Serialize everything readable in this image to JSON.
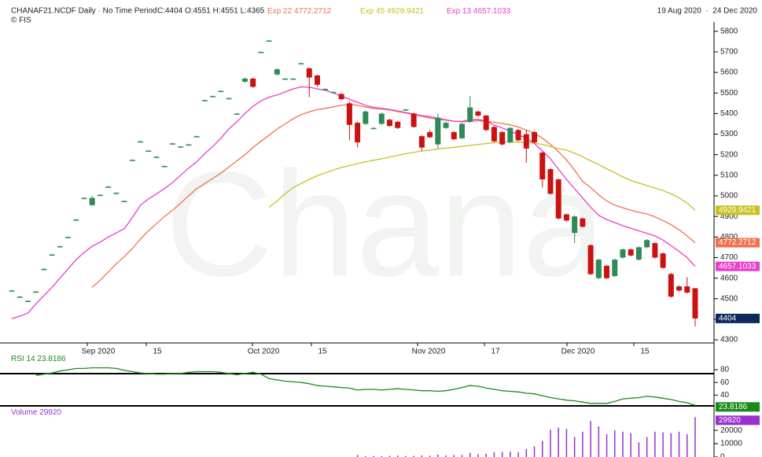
{
  "header": {
    "symbol": "CHANAF21.NCDF Daily · No Time Period",
    "ohlc": "C:4404 O:4551 H:4551 L:4365",
    "copyright": "© FIS",
    "date_range": "19 Aug 2020  ·  24 Dec 2020"
  },
  "chart_data": [
    {
      "type": "candlestick",
      "watermark": "Chana",
      "up_color": "#2e8b57",
      "down_color": "#cc1111",
      "x_labels": [
        "Sep 2020",
        "15",
        "Oct 2020",
        "15",
        "Nov 2020",
        "17",
        "Dec 2020",
        "15"
      ],
      "ylim": [
        4285,
        5845
      ],
      "yticks": [
        4300,
        4400,
        4500,
        4600,
        4700,
        4800,
        4900,
        5000,
        5100,
        5200,
        5300,
        5400,
        5500,
        5600,
        5700,
        5800
      ],
      "candles": [
        [
          4538,
          4543,
          4535,
          4540
        ],
        [
          4508,
          4513,
          4505,
          4510
        ],
        [
          4488,
          4493,
          4485,
          4490
        ],
        [
          4533,
          4538,
          4530,
          4535
        ],
        [
          4643,
          4648,
          4640,
          4645
        ],
        [
          4713,
          4718,
          4710,
          4715
        ],
        [
          4753,
          4758,
          4750,
          4755
        ],
        [
          4798,
          4803,
          4795,
          4800
        ],
        [
          4883,
          4888,
          4880,
          4885
        ],
        [
          4988,
          4993,
          4985,
          4990
        ],
        [
          4955,
          5000,
          4950,
          4990
        ],
        [
          5003,
          5008,
          5000,
          5005
        ],
        [
          5043,
          5048,
          5040,
          5045
        ],
        [
          5013,
          5018,
          5010,
          5015
        ],
        [
          4973,
          4978,
          4970,
          4975
        ],
        [
          5173,
          5178,
          5170,
          5175
        ],
        [
          5263,
          5268,
          5260,
          5265
        ],
        [
          5218,
          5223,
          5215,
          5220
        ],
        [
          5188,
          5193,
          5185,
          5190
        ],
        [
          5143,
          5148,
          5140,
          5145
        ],
        [
          5253,
          5258,
          5250,
          5255
        ],
        [
          5238,
          5243,
          5235,
          5240
        ],
        [
          5248,
          5253,
          5245,
          5250
        ],
        [
          5288,
          5293,
          5285,
          5290
        ],
        [
          5463,
          5468,
          5460,
          5465
        ],
        [
          5483,
          5488,
          5480,
          5485
        ],
        [
          5508,
          5513,
          5505,
          5510
        ],
        [
          5473,
          5478,
          5470,
          5475
        ],
        [
          5398,
          5403,
          5395,
          5400
        ],
        [
          5555,
          5575,
          5550,
          5570
        ],
        [
          5570,
          5575,
          5525,
          5530
        ],
        [
          5698,
          5703,
          5695,
          5700
        ],
        [
          5753,
          5758,
          5750,
          5755
        ],
        [
          5590,
          5620,
          5585,
          5615
        ],
        [
          5568,
          5573,
          5565,
          5570
        ],
        [
          5568,
          5573,
          5565,
          5570
        ],
        [
          5643,
          5648,
          5640,
          5645
        ],
        [
          5620,
          5625,
          5480,
          5575
        ],
        [
          5585,
          5590,
          5530,
          5540
        ],
        [
          5518,
          5523,
          5515,
          5520
        ],
        [
          5503,
          5508,
          5500,
          5505
        ],
        [
          5495,
          5500,
          5465,
          5470
        ],
        [
          5450,
          5460,
          5270,
          5345
        ],
        [
          5355,
          5360,
          5235,
          5260
        ],
        [
          5350,
          5415,
          5345,
          5410
        ],
        [
          5328,
          5333,
          5325,
          5330
        ],
        [
          5350,
          5405,
          5345,
          5400
        ],
        [
          5370,
          5375,
          5335,
          5340
        ],
        [
          5360,
          5365,
          5325,
          5330
        ],
        [
          5418,
          5423,
          5415,
          5420
        ],
        [
          5400,
          5405,
          5330,
          5335
        ],
        [
          5290,
          5295,
          5220,
          5235
        ],
        [
          5310,
          5320,
          5280,
          5285
        ],
        [
          5250,
          5400,
          5230,
          5380
        ],
        [
          5330,
          5360,
          5325,
          5355
        ],
        [
          5310,
          5315,
          5270,
          5275
        ],
        [
          5280,
          5355,
          5275,
          5350
        ],
        [
          5360,
          5485,
          5355,
          5430
        ],
        [
          5410,
          5415,
          5385,
          5390
        ],
        [
          5390,
          5395,
          5315,
          5320
        ],
        [
          5335,
          5340,
          5260,
          5265
        ],
        [
          5310,
          5315,
          5245,
          5250
        ],
        [
          5260,
          5335,
          5255,
          5330
        ],
        [
          5320,
          5325,
          5265,
          5270
        ],
        [
          5300,
          5320,
          5160,
          5230
        ],
        [
          5310,
          5315,
          5255,
          5260
        ],
        [
          5210,
          5215,
          5040,
          5080
        ],
        [
          5130,
          5135,
          5005,
          5010
        ],
        [
          5080,
          5085,
          4885,
          4890
        ],
        [
          4910,
          4915,
          4875,
          4880
        ],
        [
          4820,
          4905,
          4770,
          4900
        ],
        [
          4890,
          4895,
          4845,
          4850
        ],
        [
          4760,
          4765,
          4615,
          4620
        ],
        [
          4600,
          4695,
          4595,
          4690
        ],
        [
          4660,
          4665,
          4595,
          4600
        ],
        [
          4610,
          4695,
          4605,
          4690
        ],
        [
          4700,
          4745,
          4695,
          4740
        ],
        [
          4740,
          4745,
          4705,
          4710
        ],
        [
          4690,
          4755,
          4685,
          4750
        ],
        [
          4750,
          4790,
          4745,
          4785
        ],
        [
          4770,
          4775,
          4695,
          4700
        ],
        [
          4720,
          4725,
          4645,
          4650
        ],
        [
          4620,
          4625,
          4505,
          4510
        ],
        [
          4560,
          4565,
          4535,
          4540
        ],
        [
          4560,
          4605,
          4525,
          4530
        ],
        [
          4551,
          4551,
          4365,
          4404
        ]
      ],
      "series": [
        {
          "name": "Exp 22",
          "color": "#f07050",
          "values": [
            null,
            null,
            null,
            null,
            null,
            null,
            null,
            null,
            null,
            null,
            4555,
            4590,
            4630,
            4670,
            4705,
            4745,
            4790,
            4830,
            4865,
            4900,
            4930,
            4965,
            5000,
            5035,
            5060,
            5085,
            5110,
            5140,
            5170,
            5200,
            5235,
            5265,
            5295,
            5325,
            5350,
            5375,
            5395,
            5408,
            5420,
            5425,
            5433,
            5440,
            5444,
            5440,
            5432,
            5425,
            5422,
            5418,
            5410,
            5403,
            5395,
            5387,
            5378,
            5372,
            5368,
            5363,
            5360,
            5362,
            5365,
            5362,
            5358,
            5352,
            5345,
            5335,
            5320,
            5305,
            5280,
            5250,
            5215,
            5175,
            5125,
            5070,
            5040,
            5005,
            4975,
            4955,
            4942,
            4930,
            4920,
            4912,
            4898,
            4880,
            4860,
            4835,
            4805,
            4772.2712
          ]
        },
        {
          "name": "Exp 45",
          "color": "#c8c020",
          "values": [
            null,
            null,
            null,
            null,
            null,
            null,
            null,
            null,
            null,
            null,
            null,
            null,
            null,
            null,
            null,
            null,
            null,
            null,
            null,
            null,
            null,
            null,
            null,
            null,
            null,
            null,
            null,
            null,
            null,
            null,
            null,
            null,
            4945,
            4975,
            5010,
            5040,
            5060,
            5080,
            5098,
            5112,
            5125,
            5138,
            5147,
            5157,
            5165,
            5173,
            5180,
            5188,
            5197,
            5205,
            5212,
            5218,
            5222,
            5228,
            5232,
            5236,
            5240,
            5245,
            5250,
            5254,
            5258,
            5262,
            5262,
            5261,
            5259,
            5256,
            5250,
            5240,
            5230,
            5222,
            5208,
            5190,
            5170,
            5152,
            5132,
            5112,
            5092,
            5075,
            5062,
            5050,
            5038,
            5026,
            5010,
            4990,
            4965,
            4929.9421
          ]
        },
        {
          "name": "Exp 13",
          "color": "#e83ec8",
          "values": [
            4403,
            4415,
            4430,
            4475,
            4515,
            4555,
            4600,
            4645,
            4690,
            4725,
            4755,
            4775,
            4800,
            4820,
            4840,
            4895,
            4955,
            4985,
            5010,
            5035,
            5065,
            5100,
            5135,
            5165,
            5205,
            5240,
            5280,
            5325,
            5360,
            5400,
            5435,
            5462,
            5480,
            5490,
            5505,
            5520,
            5530,
            5528,
            5520,
            5513,
            5500,
            5485,
            5470,
            5455,
            5440,
            5430,
            5425,
            5420,
            5413,
            5405,
            5398,
            5390,
            5385,
            5378,
            5370,
            5363,
            5362,
            5370,
            5372,
            5362,
            5345,
            5330,
            5315,
            5298,
            5280,
            5255,
            5218,
            5180,
            5130,
            5080,
            5035,
            4990,
            4945,
            4905,
            4885,
            4870,
            4855,
            4843,
            4830,
            4818,
            4805,
            4785,
            4758,
            4730,
            4700,
            4657.1033
          ]
        }
      ]
    },
    {
      "type": "line",
      "ylim": [
        23,
        90
      ],
      "yticks": [
        40,
        60,
        80
      ],
      "series": [
        {
          "name": "RSI 14",
          "color": "#1a8a1a",
          "values": [
            null,
            null,
            null,
            71,
            73,
            75,
            78,
            80,
            82,
            82,
            83,
            83,
            83,
            82,
            79,
            77,
            75,
            74,
            73,
            73,
            74,
            74,
            76,
            77,
            77,
            77,
            76,
            74,
            72,
            74,
            76,
            73,
            66,
            64,
            62,
            61,
            60,
            58,
            55,
            54,
            53,
            52,
            51,
            48,
            49,
            49,
            48,
            49,
            50,
            49,
            48,
            47,
            47,
            46,
            47,
            49,
            52,
            55,
            54,
            51,
            49,
            47,
            46,
            45,
            43,
            42,
            39,
            36,
            34,
            32,
            31,
            29,
            27,
            27,
            27,
            30,
            34,
            35,
            36,
            38,
            37,
            35,
            33,
            30,
            28,
            23.8186
          ]
        }
      ]
    },
    {
      "type": "bar",
      "title": "Volume",
      "color": "#9932cc",
      "ylim": [
        0,
        36000
      ],
      "yticks": [
        0,
        10000,
        20000
      ],
      "values": [
        null,
        null,
        null,
        null,
        null,
        null,
        null,
        null,
        null,
        null,
        null,
        null,
        null,
        null,
        null,
        null,
        null,
        null,
        null,
        null,
        null,
        null,
        null,
        null,
        null,
        null,
        null,
        null,
        null,
        null,
        null,
        null,
        null,
        null,
        null,
        null,
        null,
        null,
        null,
        null,
        null,
        null,
        null,
        1500,
        600,
        800,
        700,
        900,
        1000,
        800,
        900,
        1200,
        1000,
        1800,
        1200,
        1500,
        1600,
        3000,
        2000,
        2500,
        3500,
        3800,
        4000,
        3500,
        6000,
        8000,
        12000,
        20500,
        22000,
        21000,
        15000,
        19000,
        27000,
        23000,
        17000,
        20000,
        19000,
        18000,
        11000,
        15000,
        19000,
        18500,
        18000,
        19000,
        17000,
        29920
      ]
    }
  ]
}
